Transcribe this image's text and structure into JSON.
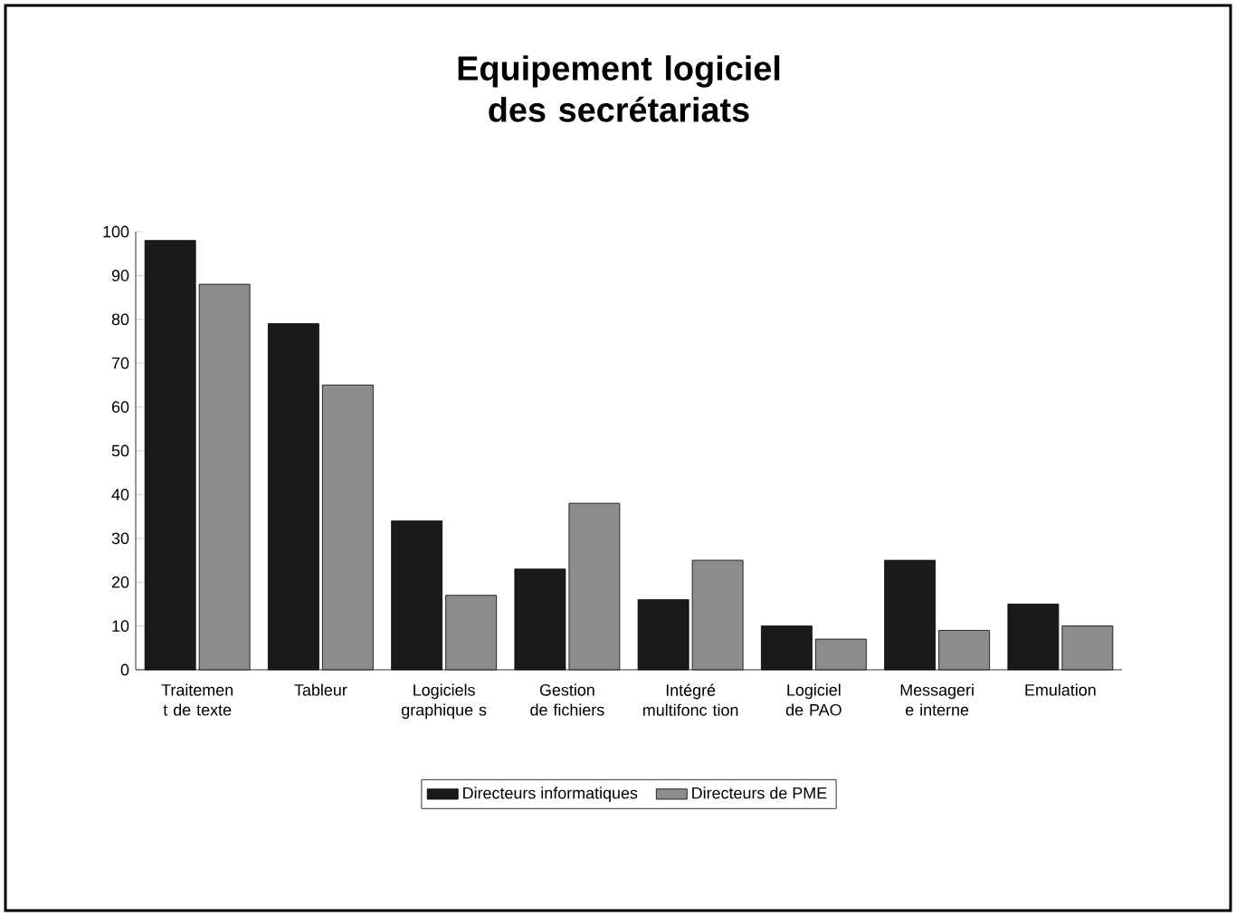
{
  "chart_data": {
    "type": "bar",
    "title": "Equipement logiciel des secrétariats",
    "categories": [
      "Traitemen t de texte",
      "Tableur",
      "Logiciels graphique s",
      "Gestion de fichiers",
      "Intégré multifonc tion",
      "Logiciel de PAO",
      "Messageri e interne",
      "Emulation"
    ],
    "series": [
      {
        "name": "Directeurs informatiques",
        "color": "#1a1a1a",
        "values": [
          98,
          79,
          34,
          23,
          16,
          10,
          25,
          15
        ]
      },
      {
        "name": "Directeurs de PME",
        "color": "#8c8c8c",
        "values": [
          88,
          65,
          17,
          38,
          25,
          7,
          9,
          10
        ]
      }
    ],
    "ylim": [
      0,
      100
    ],
    "yticks": [
      0,
      10,
      20,
      30,
      40,
      50,
      60,
      70,
      80,
      90,
      100
    ],
    "grid": false,
    "legend": "bottom"
  }
}
